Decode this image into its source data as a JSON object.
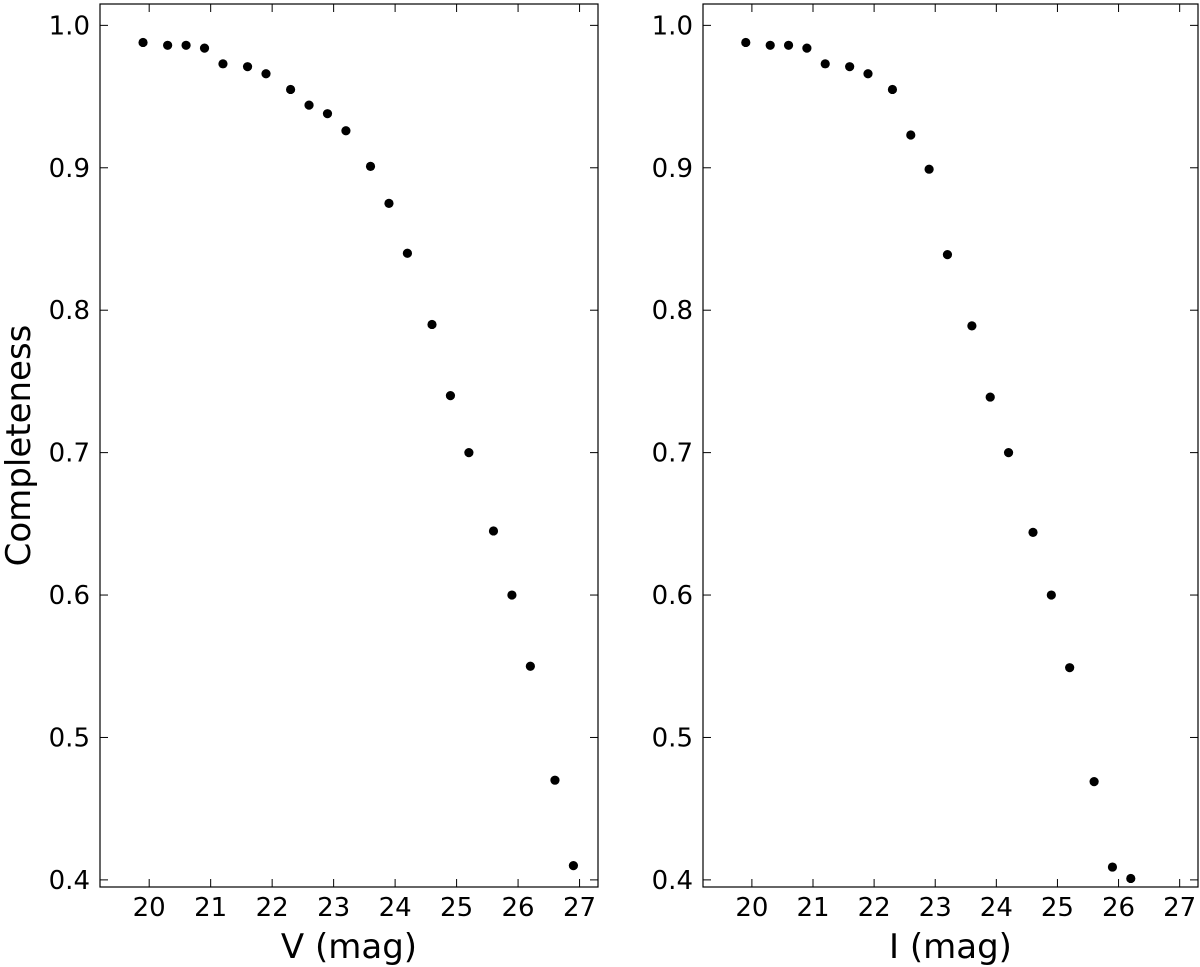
{
  "chart_data": [
    {
      "type": "scatter",
      "xlabel": "V (mag)",
      "ylabel": "Completeness",
      "xlim": [
        19.2,
        27.3
      ],
      "ylim": [
        0.395,
        1.015
      ],
      "xticks": [
        20,
        21,
        22,
        23,
        24,
        25,
        26,
        27
      ],
      "yticks": [
        0.4,
        0.5,
        0.6,
        0.7,
        0.8,
        0.9,
        1.0
      ],
      "xtick_labels": [
        "20",
        "21",
        "22",
        "23",
        "24",
        "25",
        "26",
        "27"
      ],
      "ytick_labels": [
        "0.4",
        "0.5",
        "0.6",
        "0.7",
        "0.8",
        "0.9",
        "1.0"
      ],
      "grid": false,
      "marker_color": "#000000",
      "x": [
        19.9,
        20.3,
        20.6,
        20.9,
        21.2,
        21.6,
        21.9,
        22.3,
        22.6,
        22.9,
        23.2,
        23.6,
        23.9,
        24.2,
        24.6,
        24.9,
        25.2,
        25.6,
        25.9,
        26.2,
        26.6,
        26.9
      ],
      "y": [
        0.988,
        0.986,
        0.986,
        0.984,
        0.973,
        0.971,
        0.966,
        0.955,
        0.944,
        0.938,
        0.926,
        0.901,
        0.875,
        0.84,
        0.79,
        0.74,
        0.7,
        0.645,
        0.6,
        0.55,
        0.47,
        0.41
      ]
    },
    {
      "type": "scatter",
      "xlabel": "I (mag)",
      "ylabel": "",
      "xlim": [
        19.2,
        27.3
      ],
      "ylim": [
        0.395,
        1.015
      ],
      "xticks": [
        20,
        21,
        22,
        23,
        24,
        25,
        26,
        27
      ],
      "yticks": [
        0.4,
        0.5,
        0.6,
        0.7,
        0.8,
        0.9,
        1.0
      ],
      "xtick_labels": [
        "20",
        "21",
        "22",
        "23",
        "24",
        "25",
        "26",
        "27"
      ],
      "ytick_labels": [
        "0.4",
        "0.5",
        "0.6",
        "0.7",
        "0.8",
        "0.9",
        "1.0"
      ],
      "grid": false,
      "marker_color": "#000000",
      "x": [
        19.9,
        20.3,
        20.6,
        20.9,
        21.2,
        21.6,
        21.9,
        22.3,
        22.6,
        22.9,
        23.2,
        23.6,
        23.9,
        24.2,
        24.6,
        24.9,
        25.2,
        25.6,
        25.9,
        26.2
      ],
      "y": [
        0.988,
        0.986,
        0.986,
        0.984,
        0.973,
        0.971,
        0.966,
        0.955,
        0.923,
        0.899,
        0.839,
        0.789,
        0.739,
        0.7,
        0.644,
        0.6,
        0.549,
        0.469,
        0.409,
        0.401
      ]
    }
  ]
}
